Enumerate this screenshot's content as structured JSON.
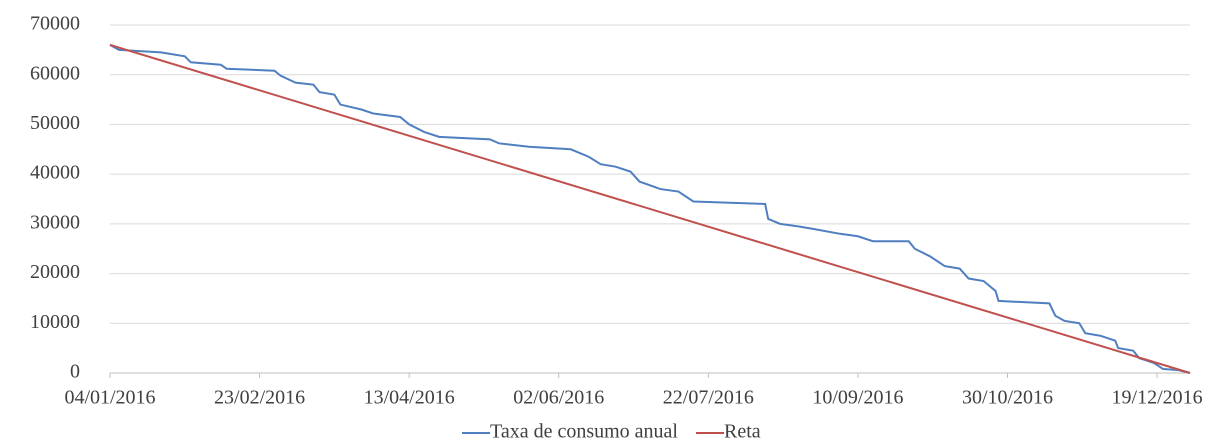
{
  "chart_data": {
    "type": "line",
    "series": [
      {
        "name": "Taxa de consumo anual",
        "color": "#4f7fc0",
        "x": [
          "2016-01-04",
          "2016-01-07",
          "2016-01-21",
          "2016-01-29",
          "2016-01-31",
          "2016-02-10",
          "2016-02-12",
          "2016-02-28",
          "2016-03-01",
          "2016-03-06",
          "2016-03-12",
          "2016-03-14",
          "2016-03-19",
          "2016-03-21",
          "2016-03-28",
          "2016-04-01",
          "2016-04-10",
          "2016-04-13",
          "2016-04-18",
          "2016-04-23",
          "2016-05-10",
          "2016-05-13",
          "2016-05-23",
          "2016-06-06",
          "2016-06-12",
          "2016-06-16",
          "2016-06-21",
          "2016-06-26",
          "2016-06-29",
          "2016-07-06",
          "2016-07-12",
          "2016-07-17",
          "2016-08-10",
          "2016-08-11",
          "2016-08-15",
          "2016-08-21",
          "2016-08-26",
          "2016-09-04",
          "2016-09-10",
          "2016-09-15",
          "2016-09-27",
          "2016-09-29",
          "2016-10-04",
          "2016-10-09",
          "2016-10-14",
          "2016-10-17",
          "2016-10-22",
          "2016-10-26",
          "2016-10-27",
          "2016-11-13",
          "2016-11-15",
          "2016-11-18",
          "2016-11-23",
          "2016-11-25",
          "2016-11-30",
          "2016-12-05",
          "2016-12-06",
          "2016-12-11",
          "2016-12-13",
          "2016-12-18",
          "2016-12-21",
          "2016-12-26",
          "2016-12-30"
        ],
        "values": [
          66000,
          65000,
          64500,
          63700,
          62500,
          62000,
          61200,
          60800,
          59800,
          58400,
          58000,
          56500,
          56000,
          54000,
          53000,
          52200,
          51500,
          50000,
          48500,
          47500,
          47000,
          46200,
          45500,
          45000,
          43500,
          42000,
          41500,
          40500,
          38500,
          37000,
          36500,
          34500,
          34000,
          31000,
          30000,
          29500,
          29000,
          28000,
          27500,
          26500,
          26500,
          25000,
          23500,
          21500,
          21000,
          19000,
          18500,
          16500,
          14500,
          14000,
          11500,
          10500,
          10000,
          8000,
          7500,
          6500,
          5000,
          4500,
          3000,
          2000,
          800,
          600,
          0
        ]
      },
      {
        "name": "Reta",
        "color": "#c0504d",
        "x": [
          "2016-01-04",
          "2016-12-30"
        ],
        "values": [
          66000,
          0
        ]
      }
    ],
    "xlim": [
      "2016-01-04",
      "2016-12-30"
    ],
    "xticks": [
      {
        "value": "2016-01-04",
        "label": "04/01/2016"
      },
      {
        "value": "2016-02-23",
        "label": "23/02/2016"
      },
      {
        "value": "2016-04-13",
        "label": "13/04/2016"
      },
      {
        "value": "2016-06-02",
        "label": "02/06/2016"
      },
      {
        "value": "2016-07-22",
        "label": "22/07/2016"
      },
      {
        "value": "2016-09-10",
        "label": "10/09/2016"
      },
      {
        "value": "2016-10-30",
        "label": "30/10/2016"
      },
      {
        "value": "2016-12-19",
        "label": "19/12/2016"
      }
    ],
    "ylim": [
      0,
      70000
    ],
    "yticks": [
      0,
      10000,
      20000,
      30000,
      40000,
      50000,
      60000,
      70000
    ],
    "grid": true,
    "legend": "bottom"
  }
}
